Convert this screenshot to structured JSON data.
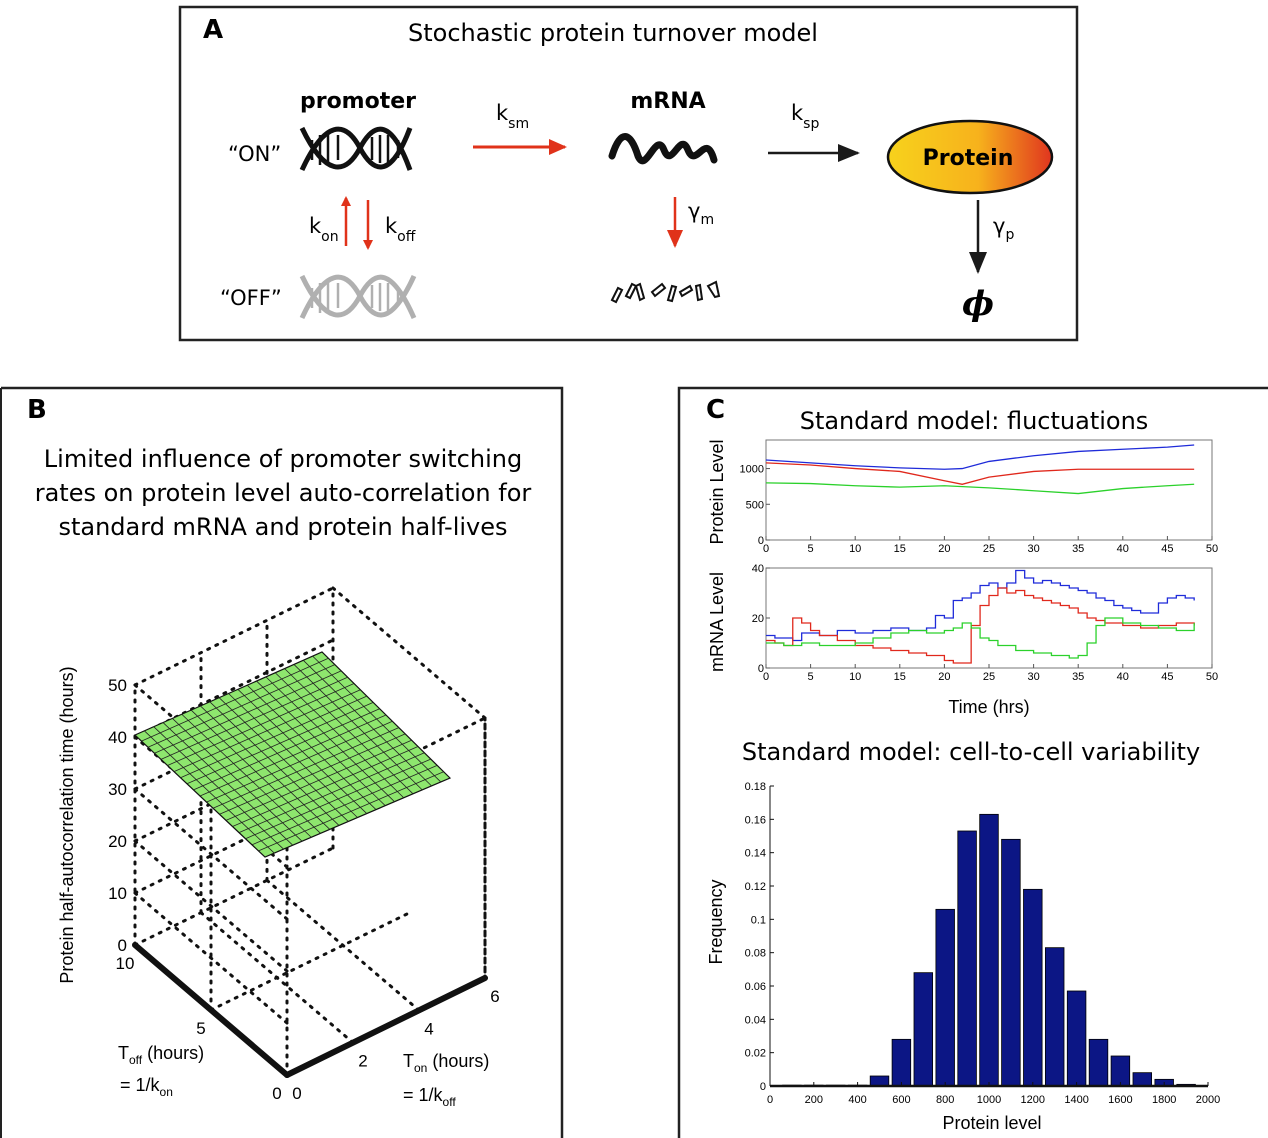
{
  "panel_a": {
    "letter": "A",
    "title": "Stochastic protein turnover model",
    "promoter_label": "promoter",
    "on_label": "“ON”",
    "off_label": "“OFF”",
    "mrna_label": "mRNA",
    "protein_label": "Protein",
    "k_sm": {
      "main": "k",
      "sub": "sm"
    },
    "k_sp": {
      "main": "k",
      "sub": "sp"
    },
    "k_on": {
      "main": "k",
      "sub": "on"
    },
    "k_off": {
      "main": "k",
      "sub": "off"
    },
    "gamma_m": {
      "main": "γ",
      "sub": "m"
    },
    "gamma_p": {
      "main": "γ",
      "sub": "p"
    },
    "phi": "ϕ",
    "colors": {
      "rate_arrow": "#e0321a",
      "black_arrow": "#1a1a1a",
      "dna_on": "#111111",
      "dna_off": "#b0b0b0",
      "protein_left": "#f7d21c",
      "protein_right": "#e0351f"
    }
  },
  "panel_b": {
    "letter": "B",
    "title_lines": [
      "Limited influence of promoter switching",
      "rates on protein level auto-correlation for",
      "standard mRNA and protein half-lives"
    ],
    "z_label": "Protein half-autocorrelation time (hours)",
    "z_ticks": [
      "0",
      "10",
      "20",
      "30",
      "40",
      "50"
    ],
    "toff_ticks": [
      "10",
      "5",
      "0"
    ],
    "ton_ticks": [
      "0",
      "2",
      "4",
      "6"
    ],
    "toff_label": {
      "main": "T",
      "sub": "off",
      "rest": " (hours)",
      "eq_main": "= 1/k",
      "eq_sub": "on"
    },
    "ton_label": {
      "main": "T",
      "sub": "on",
      "rest": " (hours)",
      "eq_main": "= 1/k",
      "eq_sub": "off"
    },
    "surface_value_hours": 40,
    "surface_color": "#8ee66e"
  },
  "panel_c": {
    "letter": "C",
    "fluct_title": "Standard model: fluctuations",
    "protein_ylabel": "Protein Level",
    "mrna_ylabel": "mRNA Level",
    "time_xlabel": "Time (hrs)",
    "time_ticks": [
      "0",
      "5",
      "10",
      "15",
      "20",
      "25",
      "30",
      "35",
      "40",
      "45",
      "50"
    ],
    "protein_yticks": [
      "0",
      "500",
      "1000"
    ],
    "mrna_yticks": [
      "0",
      "20",
      "40"
    ],
    "var_title": "Standard model: cell-to-cell variability",
    "hist_ylabel": "Frequency",
    "hist_xlabel": "Protein level",
    "hist_xticks": [
      "0",
      "200",
      "400",
      "600",
      "800",
      "1000",
      "1200",
      "1400",
      "1600",
      "1800",
      "2000"
    ],
    "hist_yticks": [
      "0",
      "0.02",
      "0.04",
      "0.06",
      "0.08",
      "0.1",
      "0.12",
      "0.14",
      "0.16",
      "0.18"
    ]
  },
  "chart_data": [
    {
      "type": "line",
      "title": "Standard model: fluctuations",
      "xlabel": "",
      "ylabel": "Protein Level",
      "xlim": [
        0,
        50
      ],
      "ylim": [
        0,
        1400
      ],
      "series": [
        {
          "color": "#1f2bd9",
          "x": [
            0,
            5,
            10,
            15,
            20,
            22,
            25,
            30,
            35,
            40,
            45,
            48
          ],
          "y": [
            1120,
            1080,
            1040,
            1010,
            990,
            1000,
            1100,
            1180,
            1240,
            1270,
            1300,
            1330
          ]
        },
        {
          "color": "#e0281c",
          "x": [
            0,
            5,
            10,
            15,
            20,
            22,
            25,
            30,
            35,
            40,
            45,
            48
          ],
          "y": [
            1080,
            1050,
            1000,
            960,
            830,
            780,
            880,
            960,
            990,
            990,
            990,
            990
          ]
        },
        {
          "color": "#2bd12b",
          "x": [
            0,
            5,
            10,
            15,
            20,
            25,
            30,
            35,
            40,
            45,
            48
          ],
          "y": [
            800,
            790,
            760,
            740,
            760,
            730,
            690,
            650,
            720,
            760,
            780
          ]
        }
      ]
    },
    {
      "type": "line",
      "title": "",
      "xlabel": "Time (hrs)",
      "ylabel": "mRNA Level",
      "xlim": [
        0,
        50
      ],
      "ylim": [
        0,
        40
      ],
      "series": [
        {
          "color": "#1f2bd9",
          "x": [
            0,
            1,
            2,
            3,
            4,
            6,
            8,
            10,
            12,
            14,
            16,
            18,
            19,
            20,
            21,
            22,
            23,
            24,
            25,
            26,
            27,
            28,
            29,
            30,
            31,
            32,
            33,
            34,
            35,
            36,
            37,
            38,
            39,
            40,
            41,
            42,
            43,
            44,
            45,
            46,
            47,
            48
          ],
          "y": [
            13,
            12,
            12,
            11,
            14,
            13,
            15,
            14,
            15,
            16,
            15,
            16,
            21,
            20,
            27,
            28,
            30,
            33,
            34,
            32,
            34,
            39,
            36,
            34,
            35,
            34,
            33,
            32,
            31,
            30,
            28,
            27,
            25,
            24,
            23,
            22,
            22,
            26,
            28,
            29,
            28,
            27
          ]
        },
        {
          "color": "#e0281c",
          "x": [
            0,
            1,
            2,
            3,
            4,
            5,
            6,
            8,
            10,
            12,
            14,
            16,
            18,
            20,
            21,
            22,
            23,
            24,
            25,
            26,
            27,
            28,
            29,
            30,
            31,
            32,
            33,
            34,
            35,
            36,
            37,
            38,
            40,
            42,
            44,
            46,
            48
          ],
          "y": [
            11,
            10,
            9,
            20,
            18,
            15,
            13,
            11,
            9,
            8,
            7,
            6,
            5,
            3,
            2,
            2,
            17,
            25,
            29,
            32,
            30,
            31,
            29,
            28,
            27,
            26,
            25,
            24,
            22,
            20,
            19,
            18,
            17,
            16,
            17,
            18,
            17
          ]
        },
        {
          "color": "#2bd12b",
          "x": [
            0,
            2,
            4,
            6,
            8,
            10,
            12,
            14,
            16,
            18,
            20,
            21,
            22,
            23,
            24,
            25,
            26,
            28,
            30,
            32,
            34,
            35,
            36,
            37,
            38,
            40,
            42,
            44,
            46,
            48
          ],
          "y": [
            10,
            9,
            10,
            9,
            9,
            10,
            12,
            14,
            15,
            14,
            15,
            16,
            18,
            16,
            12,
            11,
            9,
            7,
            6,
            5,
            4,
            5,
            10,
            17,
            20,
            18,
            17,
            16,
            15,
            18
          ]
        }
      ]
    },
    {
      "type": "bar",
      "title": "Standard model: cell-to-cell variability",
      "xlabel": "Protein level",
      "ylabel": "Frequency",
      "xlim": [
        0,
        2000
      ],
      "ylim": [
        0,
        0.18
      ],
      "bar_color": "#0c1685",
      "categories": [
        100,
        200,
        300,
        400,
        500,
        600,
        700,
        800,
        900,
        1000,
        1100,
        1200,
        1300,
        1400,
        1500,
        1600,
        1700,
        1800,
        1900
      ],
      "values": [
        0.0005,
        0.0005,
        0.0005,
        0.0005,
        0.006,
        0.028,
        0.068,
        0.106,
        0.153,
        0.163,
        0.148,
        0.118,
        0.083,
        0.057,
        0.028,
        0.018,
        0.008,
        0.004,
        0.001
      ]
    }
  ]
}
